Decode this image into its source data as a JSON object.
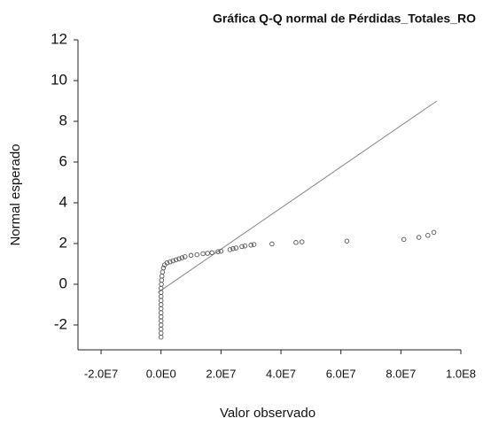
{
  "chart_data": {
    "type": "scatter",
    "title": "Gráfica Q-Q normal de Pérdidas_Totales_RO",
    "x_label": "Valor observado",
    "y_label": "Normal esperado",
    "xlim": [
      -27700000,
      100000000
    ],
    "ylim": [
      -3.22,
      12
    ],
    "xticks": [
      {
        "value": -20000000,
        "label": "-2.0E7"
      },
      {
        "value": 0,
        "label": "0.0E0"
      },
      {
        "value": 20000000,
        "label": "2.0E7"
      },
      {
        "value": 40000000,
        "label": "4.0E7"
      },
      {
        "value": 60000000,
        "label": "6.0E7"
      },
      {
        "value": 80000000,
        "label": "8.0E7"
      },
      {
        "value": 100000000,
        "label": "1.0E8"
      }
    ],
    "yticks": [
      -2,
      0,
      2,
      4,
      6,
      8,
      10,
      12
    ],
    "grid": false,
    "color": "#555555",
    "x": [
      0,
      0,
      0,
      0,
      0,
      0,
      0,
      0,
      0,
      0,
      0,
      0,
      0,
      100000,
      200000,
      300000,
      500000,
      800000,
      1200000,
      2000000,
      3000000,
      4000000,
      5000000,
      6000000,
      7000000,
      8000000,
      10000000,
      12000000,
      14000000,
      15500000,
      17000000,
      19000000,
      20000000,
      23000000,
      24000000,
      25000000,
      27000000,
      28000000,
      30000000,
      31000000,
      37000000,
      45000000,
      47000000,
      62000000,
      81000000,
      86000000,
      89000000,
      91000000
    ],
    "values": [
      -2.6,
      -2.4,
      -2.2,
      -2.0,
      -1.8,
      -1.6,
      -1.4,
      -1.2,
      -1.0,
      -0.8,
      -0.6,
      -0.4,
      -0.2,
      0.0,
      0.2,
      0.4,
      0.6,
      0.8,
      0.95,
      1.05,
      1.1,
      1.15,
      1.2,
      1.25,
      1.3,
      1.35,
      1.42,
      1.45,
      1.5,
      1.52,
      1.55,
      1.6,
      1.62,
      1.7,
      1.75,
      1.78,
      1.85,
      1.88,
      1.92,
      1.95,
      1.98,
      2.05,
      2.08,
      2.12,
      2.2,
      2.3,
      2.4,
      2.55
    ],
    "reference_line": {
      "color": "#888888",
      "x": [
        -1000000,
        92000000
      ],
      "y": [
        -0.4,
        9.0
      ]
    }
  }
}
